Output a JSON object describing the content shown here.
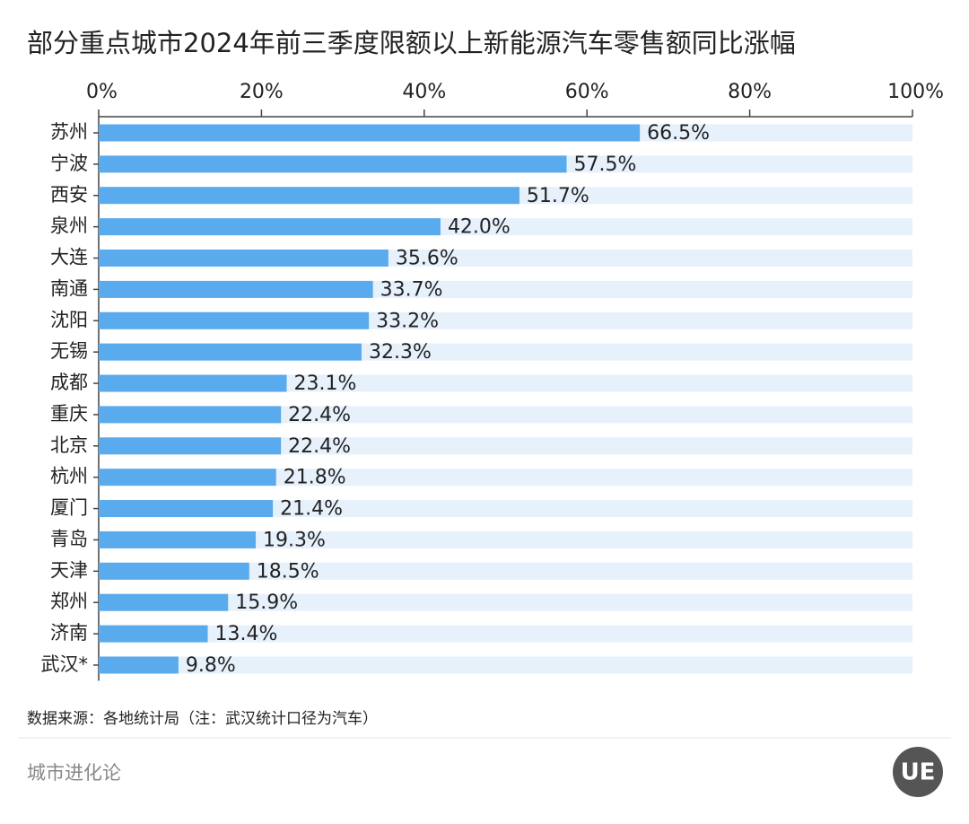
{
  "chart_data": {
    "type": "bar",
    "orientation": "horizontal",
    "title": "部分重点城市2024年前三季度限额以上新能源汽车零售额同比涨幅",
    "categories": [
      "苏州",
      "宁波",
      "西安",
      "泉州",
      "大连",
      "南通",
      "沈阳",
      "无锡",
      "成都",
      "重庆",
      "北京",
      "杭州",
      "厦门",
      "青岛",
      "天津",
      "郑州",
      "济南",
      "武汉*"
    ],
    "values": [
      66.5,
      57.5,
      51.7,
      42.0,
      35.6,
      33.7,
      33.2,
      32.3,
      23.1,
      22.4,
      22.4,
      21.8,
      21.4,
      19.3,
      18.5,
      15.9,
      13.4,
      9.8
    ],
    "value_labels": [
      "66.5%",
      "57.5%",
      "51.7%",
      "42.0%",
      "35.6%",
      "33.7%",
      "33.2%",
      "32.3%",
      "23.1%",
      "22.4%",
      "22.4%",
      "21.8%",
      "21.4%",
      "19.3%",
      "18.5%",
      "15.9%",
      "13.4%",
      "9.8%"
    ],
    "color": "#5aaaee",
    "track_color": "#e6f1fc",
    "xlim": [
      0,
      100
    ],
    "xticks": [
      {
        "value": 0,
        "label": "0%"
      },
      {
        "value": 20,
        "label": "20%"
      },
      {
        "value": 40,
        "label": "40%"
      },
      {
        "value": 60,
        "label": "60%"
      },
      {
        "value": 80,
        "label": "80%"
      },
      {
        "value": 100,
        "label": "100%"
      }
    ],
    "source": "数据来源：各地统计局（注：武汉统计口径为汽车）"
  },
  "footer": {
    "brand": "城市进化论",
    "logo": "UE"
  }
}
